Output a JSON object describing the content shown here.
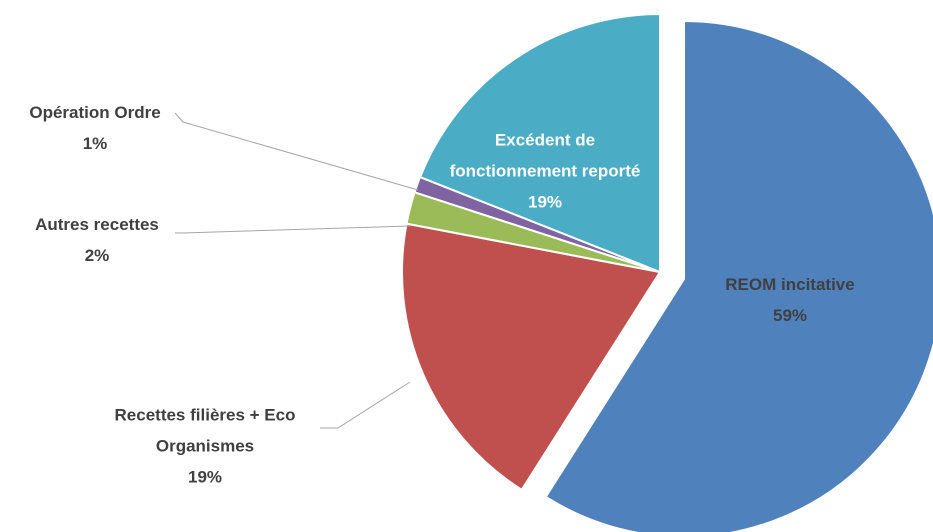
{
  "chart_data": {
    "type": "pie",
    "categories": [
      "REOM incitative",
      "Recettes filières + Eco Organismes",
      "Autres recettes",
      "Opération Ordre",
      "Excédent de fonctionnement reporté"
    ],
    "values": [
      59,
      19,
      2,
      1,
      19
    ],
    "value_labels": [
      "59%",
      "19%",
      "2%",
      "1%",
      "19%"
    ],
    "colors": [
      "#4f81bd",
      "#c0504d",
      "#9bbb59",
      "#8064a2",
      "#4bacc6"
    ]
  }
}
